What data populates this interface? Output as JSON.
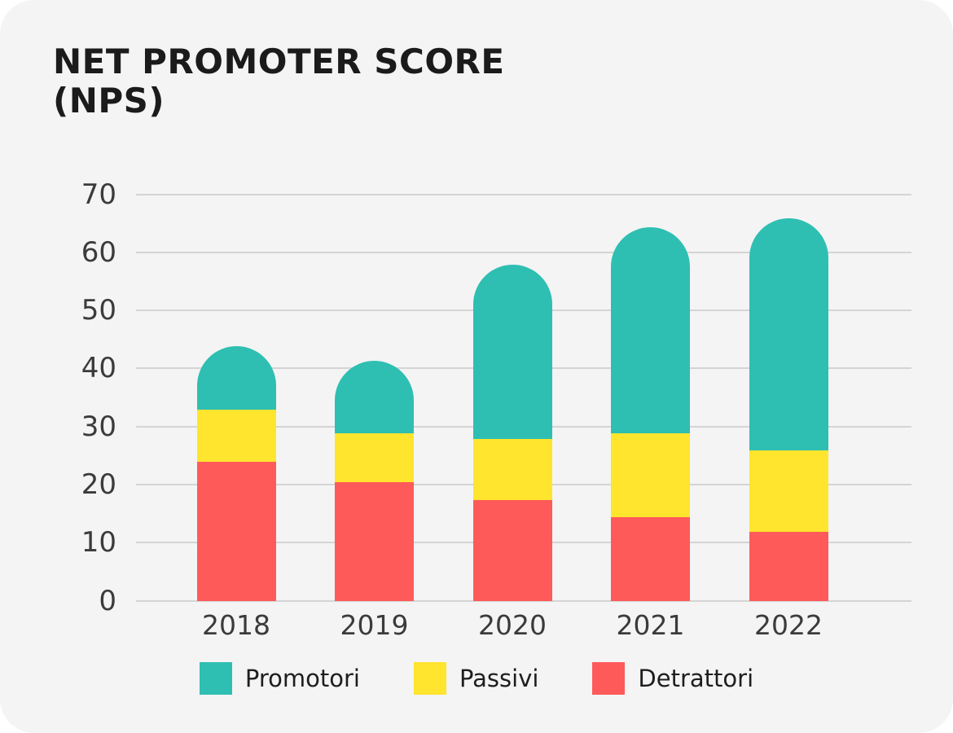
{
  "title": {
    "line1": "NET PROMOTER SCORE",
    "line2": "(NPS)"
  },
  "chart_data": {
    "type": "bar",
    "stacked": true,
    "title": "NET PROMOTER SCORE (NPS)",
    "categories": [
      "2018",
      "2019",
      "2020",
      "2021",
      "2022"
    ],
    "series": [
      {
        "name": "Promotori",
        "color": "#2ebfb2",
        "values": [
          11,
          12.5,
          30,
          35.5,
          40
        ]
      },
      {
        "name": "Passivi",
        "color": "#ffe52d",
        "values": [
          9,
          8.5,
          10.5,
          14.5,
          14
        ]
      },
      {
        "name": "Detrattori",
        "color": "#ff5a5a",
        "values": [
          24,
          20.5,
          17.5,
          14.5,
          12
        ]
      }
    ],
    "stack_order_bottom_to_top": [
      "Detrattori",
      "Passivi",
      "Promotori"
    ],
    "stack_totals": [
      44,
      41.5,
      58,
      64.5,
      66
    ],
    "y_ticks": [
      0,
      10,
      20,
      30,
      40,
      50,
      60,
      70
    ],
    "ylim": [
      0,
      70
    ],
    "xlabel": "",
    "ylabel": "",
    "grid": true,
    "legend_position": "bottom",
    "bar_style": "rounded-top"
  },
  "legend": {
    "items": [
      {
        "label": "Promotori",
        "color": "#2ebfb2"
      },
      {
        "label": "Passivi",
        "color": "#ffe52d"
      },
      {
        "label": "Detrattori",
        "color": "#ff5a5a"
      }
    ]
  },
  "colors": {
    "page_background": "#ffffff",
    "card_background": "#f4f4f4",
    "gridline": "#d4d4d4",
    "title_text": "#1b1b1b",
    "axis_text": "#3b3b3b",
    "legend_text": "#1e1e1e"
  }
}
